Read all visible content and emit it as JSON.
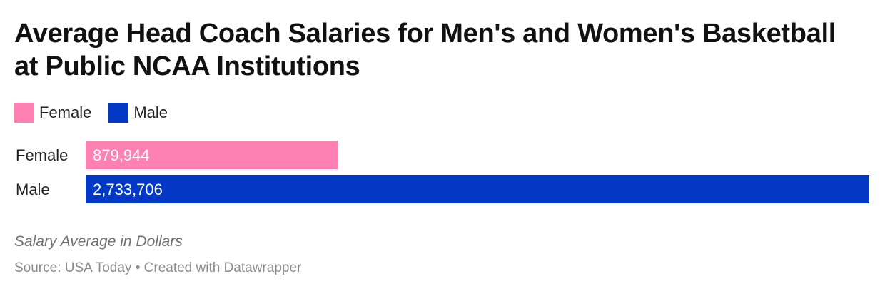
{
  "title": "Average Head Coach Salaries for Men's and Women's Basketball at Public NCAA Institutions",
  "legend": [
    {
      "label": "Female",
      "color": "#ff80b3"
    },
    {
      "label": "Male",
      "color": "#0339c5"
    }
  ],
  "notes": "Salary Average in Dollars",
  "footer": {
    "source": "Source: USA Today",
    "separator": "•",
    "credit": "Created with Datawrapper"
  },
  "chart_data": {
    "type": "bar",
    "orientation": "horizontal",
    "categories": [
      "Female",
      "Male"
    ],
    "values": [
      879944,
      2733706
    ],
    "value_labels": [
      "879,944",
      "2,733,706"
    ],
    "colors": [
      "#ff80b3",
      "#0339c5"
    ],
    "title": "",
    "xlabel": "",
    "ylabel": "",
    "xlim": [
      0,
      2733706
    ],
    "grid": false,
    "legend_position": "top-left"
  }
}
